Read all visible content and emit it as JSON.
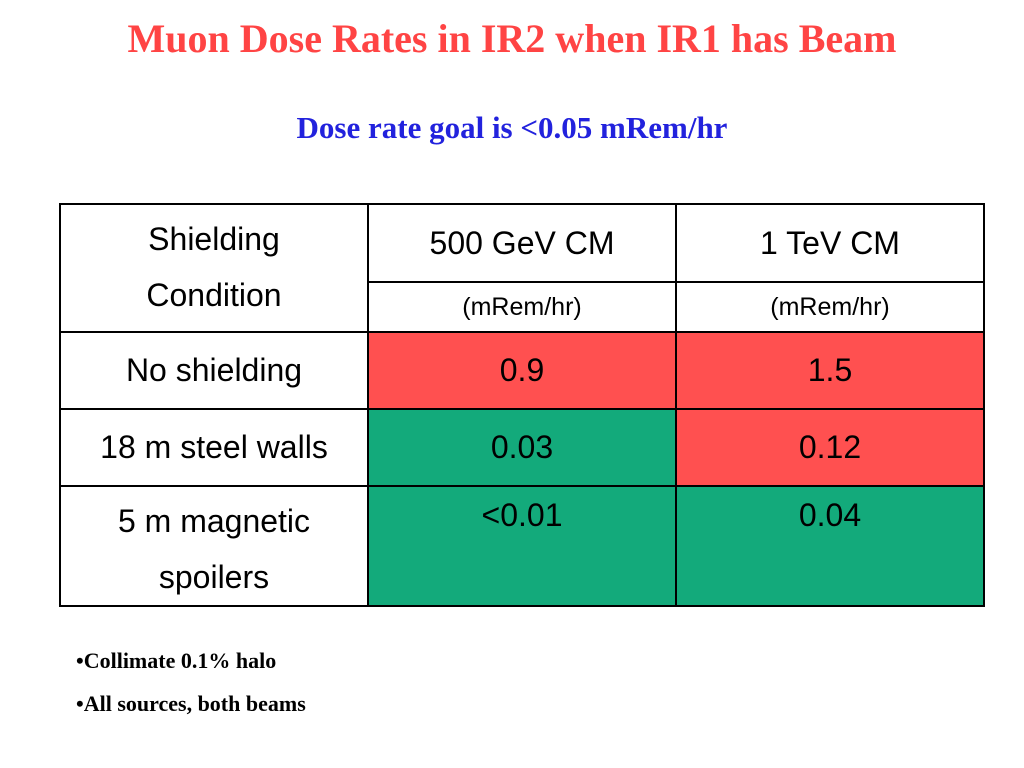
{
  "slide": {
    "title": "Muon Dose Rates in IR2 when IR1 has Beam",
    "subtitle": "Dose rate goal is <0.05 mRem/hr",
    "colors": {
      "title": "#ff4444",
      "subtitle": "#2222dd",
      "above_goal": "#ff5050",
      "below_goal": "#13aa7b"
    },
    "table": {
      "header": {
        "condition_line1": "Shielding",
        "condition_line2": "Condition",
        "col1": "500 GeV CM",
        "col2": "1 TeV CM",
        "col1_unit": "(mRem/hr)",
        "col2_unit": "(mRem/hr)"
      },
      "rows": [
        {
          "condition": "No shielding",
          "v500": "0.9",
          "v1tev": "1.5"
        },
        {
          "condition": "18 m steel walls",
          "v500": "0.03",
          "v1tev": "0.12"
        },
        {
          "condition_line1": "5 m magnetic",
          "condition_line2": "spoilers",
          "v500": "<0.01",
          "v1tev": "0.04"
        }
      ]
    },
    "bullets": [
      "•Collimate 0.1% halo",
      "•All sources, both beams"
    ]
  }
}
